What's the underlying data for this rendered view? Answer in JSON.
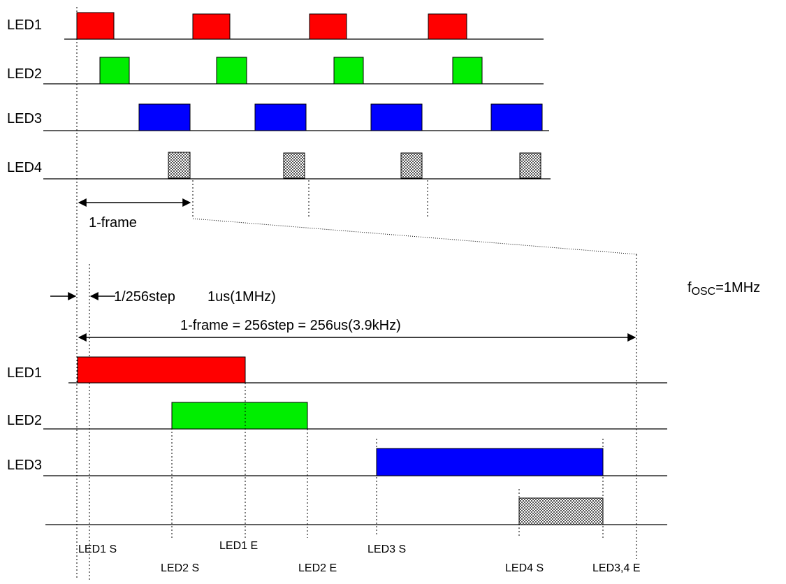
{
  "top": {
    "channels": [
      {
        "label": "LED1",
        "color": "#ff0000"
      },
      {
        "label": "LED2",
        "color": "#00ee00"
      },
      {
        "label": "LED3",
        "color": "#0000ff"
      },
      {
        "label": "LED4",
        "color": "#c8c8c8",
        "pattern": "checker"
      }
    ],
    "frame_label": "1-frame"
  },
  "bottom": {
    "channels": [
      {
        "label": "LED1",
        "color": "#ff0000"
      },
      {
        "label": "LED2",
        "color": "#00ee00"
      },
      {
        "label": "LED3",
        "color": "#0000ff"
      },
      {
        "label": "",
        "color": "#c8c8c8",
        "pattern": "checker"
      }
    ],
    "step_label": "1/256step",
    "step_time": "1us(1MHz)",
    "frame_eq": "1-frame = 256step = 256us(3.9kHz)",
    "markers": [
      "LED1 S",
      "LED2 S",
      "LED1 E",
      "LED2 E",
      "LED3 S",
      "LED4 S",
      "LED3,4 E"
    ]
  },
  "fosc": {
    "prefix": "f",
    "sub": "OSC",
    "suffix": "=1MHz"
  }
}
